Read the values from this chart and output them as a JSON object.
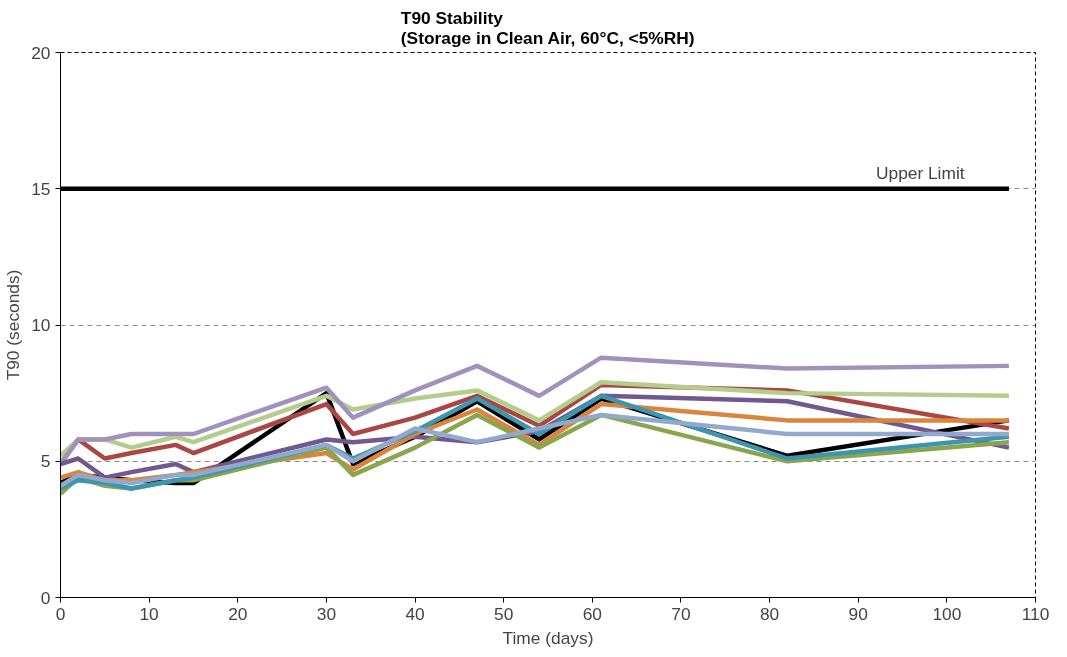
{
  "chart_data": {
    "type": "line",
    "title": "T90 Stability\n(Storage in Clean Air, 60°C, <5%RH)",
    "xlabel": "Time (days)",
    "ylabel": "T90 (seconds)",
    "x": [
      0,
      2,
      5,
      8,
      13,
      15,
      30,
      33,
      40,
      47,
      54,
      61,
      82,
      107
    ],
    "xlim": [
      0,
      110
    ],
    "xticks": [
      0,
      10,
      20,
      30,
      40,
      50,
      60,
      70,
      80,
      90,
      100,
      110
    ],
    "ylim": [
      0,
      20
    ],
    "yticks": [
      0,
      5,
      10,
      15,
      20
    ],
    "grid": "y",
    "marker": "none",
    "line_style": "solid",
    "annotations": [
      {
        "text": "Upper Limit",
        "x": 97,
        "y": 15
      }
    ],
    "series": [
      {
        "color": "#000000",
        "x": [
          0,
          107
        ],
        "values": [
          15,
          15
        ]
      },
      {
        "color": "#000000",
        "values": [
          4.2,
          4.5,
          4.4,
          4.3,
          4.2,
          4.2,
          7.5,
          4.9,
          5.9,
          7.2,
          5.8,
          7.3,
          5.2,
          6.5
        ]
      },
      {
        "color": "#aa4643",
        "values": [
          4.9,
          5.8,
          5.1,
          5.3,
          5.6,
          5.3,
          7.1,
          6.0,
          6.6,
          7.4,
          6.3,
          7.8,
          7.6,
          6.2
        ]
      },
      {
        "color": "#b3cd8d",
        "values": [
          5.2,
          5.8,
          5.8,
          5.5,
          5.9,
          5.7,
          7.4,
          6.9,
          7.3,
          7.6,
          6.5,
          7.9,
          7.5,
          7.4
        ]
      },
      {
        "color": "#a391bd",
        "values": [
          4.9,
          5.8,
          5.8,
          6.0,
          6.0,
          6.0,
          7.7,
          6.6,
          7.6,
          8.5,
          7.4,
          8.8,
          8.4,
          8.5
        ]
      },
      {
        "color": "#71588f",
        "values": [
          4.9,
          5.1,
          4.4,
          4.6,
          4.9,
          4.6,
          5.8,
          5.7,
          5.9,
          5.7,
          6.1,
          7.4,
          7.2,
          5.5
        ]
      },
      {
        "color": "#db843d",
        "values": [
          4.4,
          4.6,
          4.3,
          4.3,
          4.5,
          4.6,
          5.3,
          4.7,
          6.0,
          6.9,
          5.6,
          7.1,
          6.5,
          6.5
        ]
      },
      {
        "color": "#89a54e",
        "values": [
          3.8,
          4.4,
          4.1,
          4.0,
          4.3,
          4.3,
          5.5,
          4.5,
          5.5,
          6.7,
          5.5,
          6.7,
          5.0,
          5.7
        ]
      },
      {
        "color": "#3d96ae",
        "values": [
          4.0,
          4.3,
          4.2,
          4.0,
          4.3,
          4.4,
          5.6,
          5.1,
          6.1,
          7.3,
          6.0,
          7.4,
          5.1,
          5.9
        ]
      },
      {
        "color": "#92a8cd",
        "values": [
          4.1,
          4.5,
          4.3,
          4.2,
          4.5,
          4.5,
          5.6,
          5.0,
          6.2,
          5.7,
          6.2,
          6.7,
          6.0,
          6.0
        ]
      }
    ]
  }
}
